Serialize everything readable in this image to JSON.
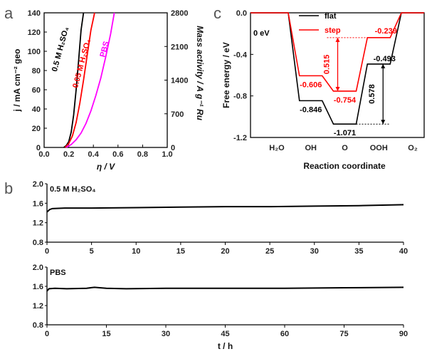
{
  "panels": {
    "a": {
      "letter": "a",
      "chart_data": {
        "type": "line",
        "xlabel": "η / V",
        "ylabel": "j / mA cm⁻² geo",
        "y2label": "Mass activity / A g⁻¹ Ru",
        "xlim": [
          0,
          1.0
        ],
        "ylim": [
          0,
          140
        ],
        "y2lim": [
          0,
          2800
        ],
        "xticks": [
          "0.0",
          "0.2",
          "0.4",
          "0.6",
          "0.8",
          "1.0"
        ],
        "yticks": [
          "0",
          "20",
          "40",
          "60",
          "80",
          "100",
          "120",
          "140"
        ],
        "y2ticks": [
          "0",
          "700",
          "1400",
          "2100",
          "2800"
        ],
        "series": [
          {
            "name": "0.5 M H2SO4",
            "color": "#000000",
            "x": [
              0.16,
              0.18,
              0.2,
              0.22,
              0.24,
              0.26,
              0.28,
              0.3,
              0.32
            ],
            "y": [
              0,
              2,
              6,
              16,
              34,
              60,
              90,
              122,
              140
            ]
          },
          {
            "name": "0.05 M H2SO4",
            "color": "#ff0000",
            "x": [
              0.17,
              0.2,
              0.23,
              0.26,
              0.29,
              0.32,
              0.35,
              0.38,
              0.41
            ],
            "y": [
              0,
              4,
              12,
              26,
              46,
              70,
              96,
              122,
              140
            ]
          },
          {
            "name": "PBS",
            "color": "#ff00ff",
            "x": [
              0.18,
              0.22,
              0.26,
              0.3,
              0.34,
              0.38,
              0.42,
              0.46,
              0.5,
              0.54,
              0.57
            ],
            "y": [
              0,
              3,
              8,
              15,
              25,
              38,
              54,
              72,
              94,
              118,
              140
            ]
          }
        ],
        "series_labels": [
          "0.5 M H₂SO₄",
          "0.05 M H₂SO₄",
          "PBS"
        ]
      }
    },
    "b": {
      "letter": "b",
      "xlabel": "t / h",
      "charts": [
        {
          "type": "line",
          "name": "0.5 M H₂SO₄",
          "xlim": [
            0,
            40
          ],
          "ylim": [
            0.8,
            2.0
          ],
          "xticks": [
            "0",
            "5",
            "10",
            "15",
            "20",
            "25",
            "30",
            "35",
            "40"
          ],
          "yticks": [
            "0.8",
            "1.2",
            "1.6",
            "2.0"
          ],
          "color": "#000000",
          "x": [
            0,
            0.3,
            0.6,
            2,
            5,
            10,
            15,
            20,
            25,
            30,
            35,
            40
          ],
          "y": [
            1.42,
            1.47,
            1.49,
            1.5,
            1.5,
            1.51,
            1.52,
            1.53,
            1.53,
            1.54,
            1.55,
            1.57
          ]
        },
        {
          "type": "line",
          "name": "PBS",
          "xlim": [
            0,
            90
          ],
          "ylim": [
            0.8,
            2.0
          ],
          "xticks": [
            "0",
            "15",
            "30",
            "45",
            "60",
            "75",
            "90"
          ],
          "yticks": [
            "0.8",
            "1.2",
            "1.6",
            "2.0"
          ],
          "color": "#000000",
          "x": [
            0,
            0.5,
            2,
            5,
            10,
            12,
            15,
            20,
            30,
            45,
            60,
            75,
            90
          ],
          "y": [
            1.5,
            1.55,
            1.56,
            1.55,
            1.56,
            1.58,
            1.56,
            1.55,
            1.56,
            1.56,
            1.56,
            1.57,
            1.58
          ]
        }
      ]
    },
    "c": {
      "letter": "c",
      "chart_data": {
        "type": "line",
        "xlabel": "Reaction coordinate",
        "ylabel": "Free energy / eV",
        "ylim": [
          -1.2,
          0.0
        ],
        "yticks": [
          "0.0",
          "-0.4",
          "-0.8",
          "-1.2"
        ],
        "categories": [
          "H₂O",
          "OH",
          "O",
          "OOH",
          "O₂"
        ],
        "series": [
          {
            "name": "flat",
            "color": "#000000",
            "values": [
              0.0,
              -0.846,
              -1.071,
              -0.493,
              0.0
            ]
          },
          {
            "name": "step",
            "color": "#ff0000",
            "values": [
              0.0,
              -0.606,
              -0.754,
              -0.239,
              0.0
            ]
          }
        ],
        "value_labels": {
          "flat": [
            "-0.846",
            "-1.071",
            "-0.493"
          ],
          "step": [
            "-0.606",
            "-0.754",
            "-0.239"
          ]
        },
        "zero_label": "0 eV",
        "gap_labels": {
          "step": "0.515",
          "flat": "0.578"
        }
      }
    }
  }
}
